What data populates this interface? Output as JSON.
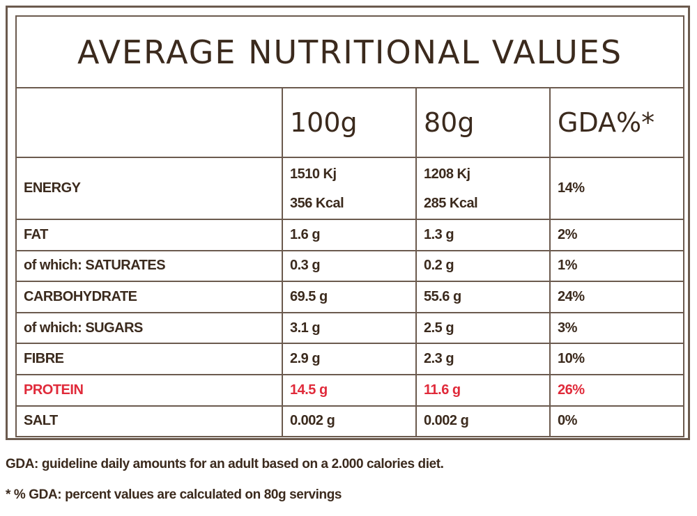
{
  "title": "AVERAGE NUTRITIONAL VALUES",
  "columns": [
    "",
    "100g",
    "80g",
    "GDA%*"
  ],
  "rows": [
    {
      "label": "ENERGY",
      "v100_line1": "1510 Kj",
      "v100_line2": "356 Kcal",
      "v80_line1": "1208 Kj",
      "v80_line2": "285 Kcal",
      "gda": "14%"
    },
    {
      "label": "FAT",
      "v100": "1.6 g",
      "v80": "1.3 g",
      "gda": "2%"
    },
    {
      "label": "of which: SATURATES",
      "v100": "0.3 g",
      "v80": "0.2 g",
      "gda": "1%"
    },
    {
      "label": "CARBOHYDRATE",
      "v100": "69.5 g",
      "v80": "55.6 g",
      "gda": "24%"
    },
    {
      "label": "of which: SUGARS",
      "v100": "3.1 g",
      "v80": "2.5 g",
      "gda": "3%"
    },
    {
      "label": "FIBRE",
      "v100": "2.9 g",
      "v80": "2.3 g",
      "gda": "10%"
    },
    {
      "label": "PROTEIN",
      "v100": "14.5 g",
      "v80": "11.6 g",
      "gda": "26%"
    },
    {
      "label": "SALT",
      "v100": "0.002 g",
      "v80": "0.002 g",
      "gda": "0%"
    }
  ],
  "notes": {
    "gda_definition": "GDA: guideline daily amounts for an adult based on a 2.000 calories diet.",
    "gda_percent": "* % GDA: percent values are calculated on 80g servings"
  },
  "colors": {
    "text": "#3b2a1d",
    "border": "#6b5a4e",
    "protein_highlight": "#e02a3a"
  }
}
